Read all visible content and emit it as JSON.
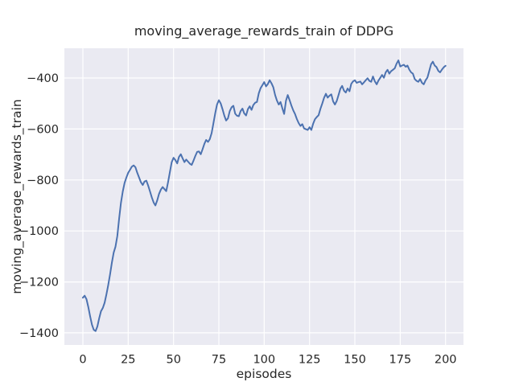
{
  "figure": {
    "background": "#ffffff"
  },
  "chart_data": {
    "type": "line",
    "title": "moving_average_rewards_train of DDPG",
    "xlabel": "episodes",
    "ylabel": "moving_average_rewards_train",
    "legend": "none",
    "grid": true,
    "style": "seaborn-darkgrid",
    "plot_bg": "#eaeaf2",
    "grid_color": "#ffffff",
    "line_color": "#4c72b0",
    "text_color": "#262626",
    "xlim": [
      -10.2,
      209.9
    ],
    "ylim": [
      -1447.5,
      -283.3
    ],
    "xticks": [
      0,
      25,
      50,
      75,
      100,
      125,
      150,
      175,
      200
    ],
    "xtick_labels": [
      "0",
      "25",
      "50",
      "75",
      "100",
      "125",
      "150",
      "175",
      "200"
    ],
    "yticks": [
      -400,
      -600,
      -800,
      -1000,
      -1200,
      -1400
    ],
    "ytick_labels": [
      "−400",
      "−600",
      "−800",
      "−1000",
      "−1200",
      "−1400"
    ],
    "x_start": 0,
    "x_step": 1,
    "values": [
      -1262,
      -1254,
      -1268,
      -1298,
      -1335,
      -1368,
      -1388,
      -1393,
      -1375,
      -1342,
      -1315,
      -1302,
      -1282,
      -1248,
      -1212,
      -1170,
      -1125,
      -1085,
      -1062,
      -1020,
      -950,
      -890,
      -845,
      -812,
      -790,
      -772,
      -760,
      -748,
      -743,
      -750,
      -772,
      -790,
      -809,
      -820,
      -806,
      -803,
      -822,
      -845,
      -868,
      -888,
      -900,
      -880,
      -855,
      -838,
      -828,
      -836,
      -844,
      -808,
      -768,
      -730,
      -713,
      -722,
      -735,
      -710,
      -699,
      -715,
      -730,
      -720,
      -728,
      -736,
      -741,
      -724,
      -706,
      -690,
      -688,
      -699,
      -680,
      -658,
      -643,
      -651,
      -640,
      -616,
      -578,
      -538,
      -504,
      -487,
      -500,
      -522,
      -548,
      -567,
      -558,
      -530,
      -515,
      -509,
      -540,
      -548,
      -550,
      -530,
      -520,
      -539,
      -547,
      -522,
      -511,
      -525,
      -506,
      -497,
      -494,
      -460,
      -440,
      -428,
      -416,
      -433,
      -424,
      -409,
      -421,
      -436,
      -467,
      -488,
      -504,
      -494,
      -519,
      -541,
      -489,
      -467,
      -487,
      -508,
      -527,
      -541,
      -561,
      -577,
      -588,
      -581,
      -598,
      -601,
      -604,
      -593,
      -604,
      -579,
      -562,
      -553,
      -546,
      -521,
      -500,
      -478,
      -462,
      -477,
      -469,
      -464,
      -492,
      -504,
      -490,
      -467,
      -442,
      -431,
      -450,
      -457,
      -441,
      -452,
      -423,
      -413,
      -409,
      -419,
      -416,
      -414,
      -425,
      -417,
      -409,
      -401,
      -411,
      -415,
      -394,
      -413,
      -425,
      -410,
      -399,
      -388,
      -399,
      -378,
      -368,
      -383,
      -373,
      -368,
      -362,
      -344,
      -331,
      -355,
      -351,
      -348,
      -356,
      -351,
      -367,
      -378,
      -383,
      -404,
      -411,
      -415,
      -404,
      -419,
      -425,
      -409,
      -398,
      -373,
      -346,
      -336,
      -351,
      -357,
      -372,
      -378,
      -367,
      -358,
      -352
    ]
  }
}
